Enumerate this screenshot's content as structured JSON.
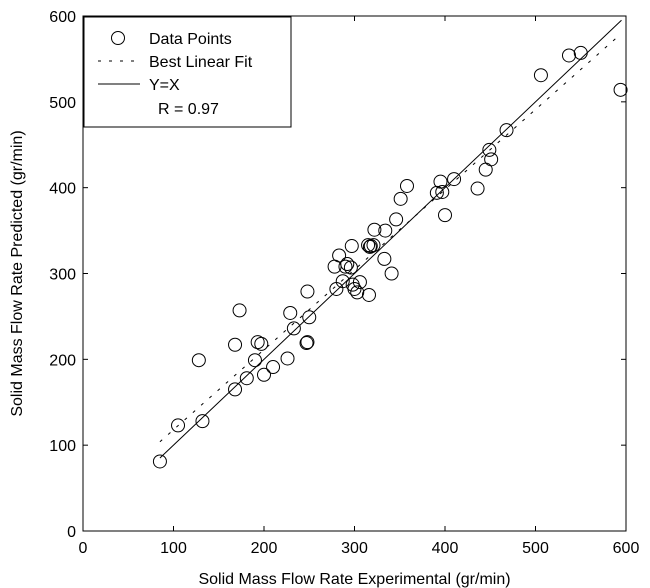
{
  "chart_data": {
    "type": "scatter",
    "xlabel": "Solid Mass Flow Rate Experimental (gr/min)",
    "ylabel": "Solid Mass Flow Rate Predicted (gr/min)",
    "xlim": [
      0,
      600
    ],
    "ylim": [
      0,
      600
    ],
    "xticks": [
      "0",
      "100",
      "200",
      "300",
      "400",
      "500",
      "600"
    ],
    "yticks": [
      "0",
      "100",
      "200",
      "300",
      "400",
      "500",
      "600"
    ],
    "grid": false,
    "legend_position": "top-left",
    "legend": {
      "data_points": "Data Points",
      "best_fit": "Best Linear Fit",
      "identity": "Y=X",
      "r_value": "R = 0.97"
    },
    "series": [
      {
        "name": "Data Points",
        "marker": "open-circle",
        "points": [
          [
            85,
            81
          ],
          [
            105,
            123
          ],
          [
            128,
            199
          ],
          [
            132,
            128
          ],
          [
            168,
            165
          ],
          [
            168,
            217
          ],
          [
            173,
            257
          ],
          [
            181,
            178
          ],
          [
            190,
            199
          ],
          [
            193,
            220
          ],
          [
            197,
            218
          ],
          [
            200,
            182
          ],
          [
            210,
            191
          ],
          [
            226,
            201
          ],
          [
            229,
            254
          ],
          [
            233,
            236
          ],
          [
            248,
            279
          ],
          [
            248,
            220
          ],
          [
            250,
            249
          ],
          [
            247,
            219
          ],
          [
            278,
            308
          ],
          [
            280,
            282
          ],
          [
            283,
            321
          ],
          [
            287,
            291
          ],
          [
            290,
            308
          ],
          [
            292,
            311
          ],
          [
            296,
            307
          ],
          [
            297,
            332
          ],
          [
            298,
            287
          ],
          [
            300,
            282
          ],
          [
            303,
            278
          ],
          [
            306,
            290
          ],
          [
            315,
            333
          ],
          [
            316,
            275
          ],
          [
            317,
            331
          ],
          [
            318,
            332
          ],
          [
            321,
            333
          ],
          [
            322,
            351
          ],
          [
            333,
            317
          ],
          [
            334,
            350
          ],
          [
            341,
            300
          ],
          [
            346,
            363
          ],
          [
            351,
            387
          ],
          [
            358,
            402
          ],
          [
            391,
            394
          ],
          [
            395,
            407
          ],
          [
            397,
            395
          ],
          [
            400,
            368
          ],
          [
            410,
            410
          ],
          [
            436,
            399
          ],
          [
            445,
            421
          ],
          [
            449,
            444
          ],
          [
            451,
            433
          ],
          [
            468,
            467
          ],
          [
            506,
            531
          ],
          [
            537,
            554
          ],
          [
            550,
            557
          ],
          [
            594,
            514
          ]
        ]
      },
      {
        "name": "Best Linear Fit",
        "style": "dashed",
        "line": [
          [
            85,
            104
          ],
          [
            590,
            575
          ]
        ]
      },
      {
        "name": "Y=X",
        "style": "solid",
        "line": [
          [
            85,
            85
          ],
          [
            595,
            595
          ]
        ]
      }
    ],
    "colors": {
      "axis": "#000000",
      "markers": "#000000",
      "background": "#ffffff"
    }
  }
}
